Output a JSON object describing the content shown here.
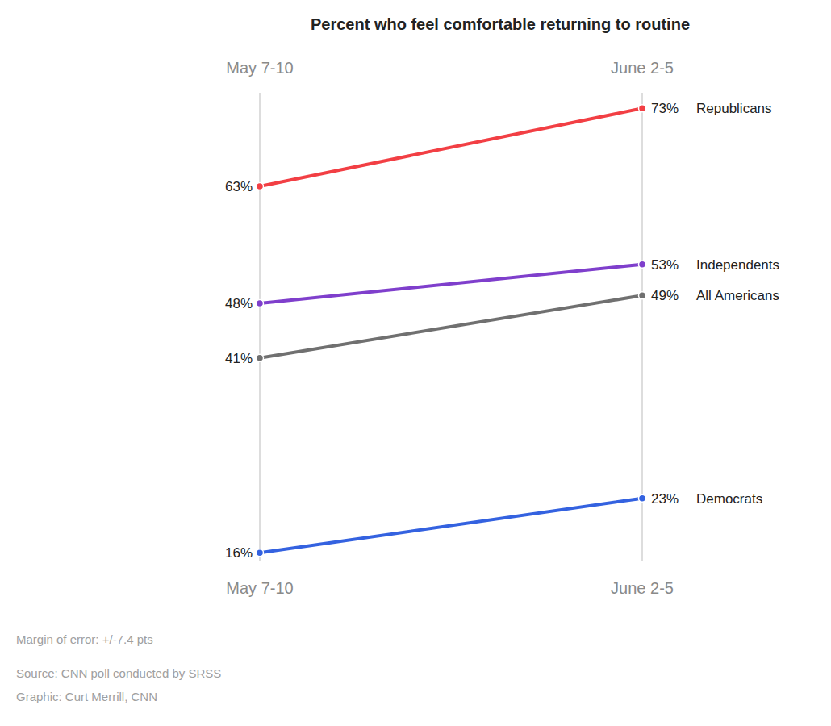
{
  "chart_data": {
    "type": "line",
    "title": "Percent who feel comfortable returning to routine",
    "categories": [
      "May 7-10",
      "June 2-5"
    ],
    "series": [
      {
        "name": "Republicans",
        "color": "#f23f44",
        "values": [
          63,
          73
        ],
        "value_labels": [
          "63%",
          "73%"
        ]
      },
      {
        "name": "Independents",
        "color": "#7f3fcc",
        "values": [
          48,
          53
        ],
        "value_labels": [
          "48%",
          "53%"
        ]
      },
      {
        "name": "All Americans",
        "color": "#707070",
        "values": [
          41,
          49
        ],
        "value_labels": [
          "41%",
          "49%"
        ]
      },
      {
        "name": "Democrats",
        "color": "#3462e0",
        "values": [
          16,
          23
        ],
        "value_labels": [
          "16%",
          "23%"
        ]
      }
    ],
    "ylim": [
      15,
      75
    ],
    "tick_labels": false,
    "data_labels": true,
    "marker": "circle",
    "annotations": [
      "Margin of error: +/-7.4 pts"
    ],
    "source": "Source: CNN poll conducted by SRSS",
    "credit": "Graphic: Curt Merrill, CNN"
  }
}
